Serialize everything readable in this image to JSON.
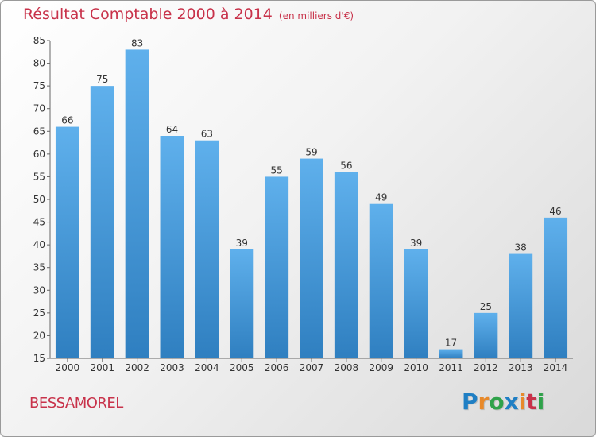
{
  "header": {
    "title": "Résultat Comptable 2000 à 2014",
    "unit": "(en milliers d'€)"
  },
  "footer": {
    "commune": "BESSAMOREL",
    "logo_letters": [
      {
        "ch": "P",
        "color": "#1f7fc4"
      },
      {
        "ch": "r",
        "color": "#e8892a"
      },
      {
        "ch": "o",
        "color": "#2fa24a"
      },
      {
        "ch": "x",
        "color": "#1f7fc4"
      },
      {
        "ch": "i",
        "color": "#e8892a"
      },
      {
        "ch": "t",
        "color": "#c8324a"
      },
      {
        "ch": "i",
        "color": "#2fa24a"
      }
    ]
  },
  "chart_data": {
    "type": "bar",
    "title": "Résultat Comptable 2000 à 2014",
    "subtitle": "(en milliers d'€)",
    "categories": [
      "2000",
      "2001",
      "2002",
      "2003",
      "2004",
      "2005",
      "2006",
      "2007",
      "2008",
      "2009",
      "2010",
      "2011",
      "2012",
      "2013",
      "2014"
    ],
    "values": [
      66,
      75,
      83,
      64,
      63,
      39,
      55,
      59,
      56,
      49,
      39,
      17,
      25,
      38,
      46
    ],
    "ylim": [
      15,
      85
    ],
    "yticks": [
      15,
      20,
      25,
      30,
      35,
      40,
      45,
      50,
      55,
      60,
      65,
      70,
      75,
      80,
      85
    ],
    "xlabel": "",
    "ylabel": "",
    "grid": false,
    "data_labels": true,
    "bar_color": "#4a9fe0"
  }
}
